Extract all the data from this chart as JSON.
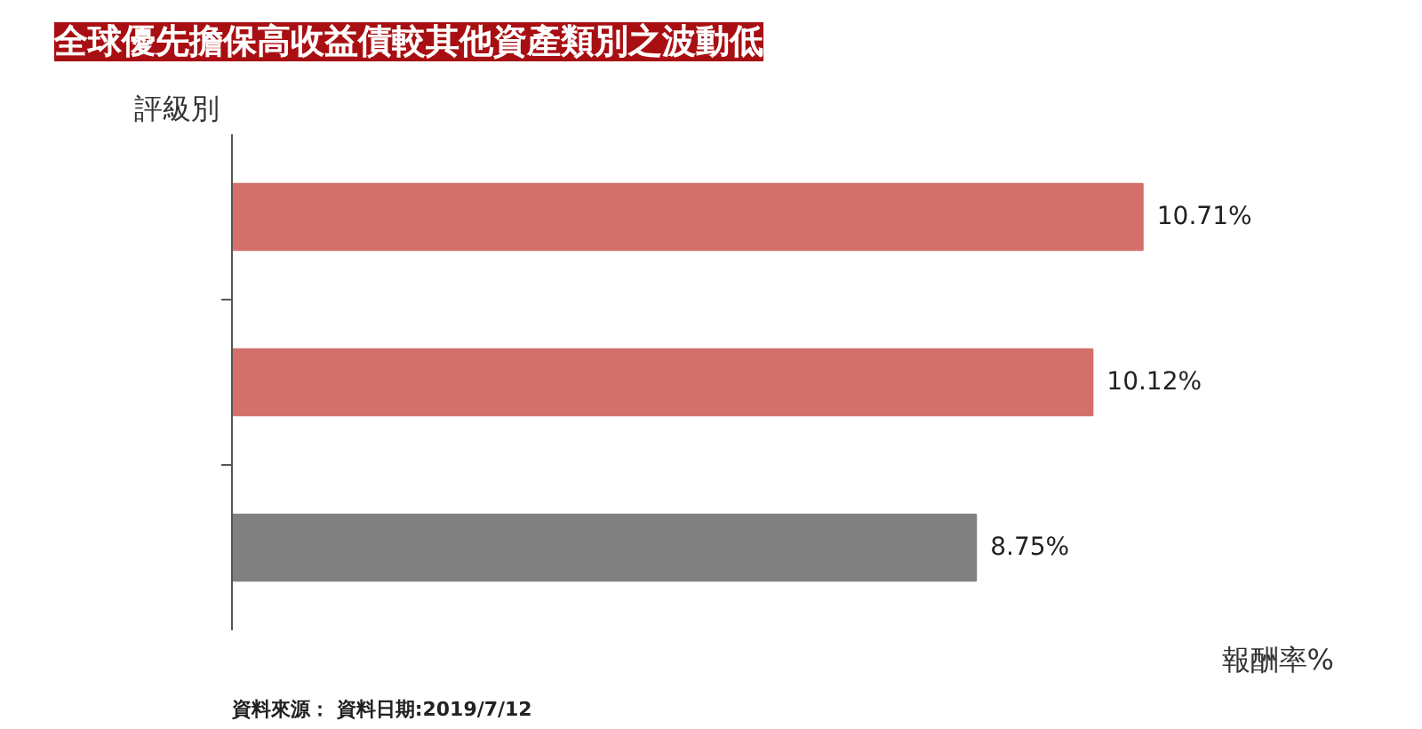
{
  "chart_data": {
    "type": "bar",
    "orientation": "horizontal",
    "title": "全球優先擔保高收益債較其他資產類別之波動低",
    "ylabel": "評級別",
    "xlabel": "報酬率%",
    "annotations": [
      "資料來源： 資料日期:2019/7/12"
    ],
    "categories": [
      null,
      null,
      null
    ],
    "values": [
      10.71,
      10.12,
      8.75
    ],
    "colors": [
      "#d4706c",
      "#d4706c",
      "#808080"
    ],
    "value_labels": [
      "10.71%",
      "10.12%",
      "8.75%"
    ],
    "tick_labels": false
  }
}
